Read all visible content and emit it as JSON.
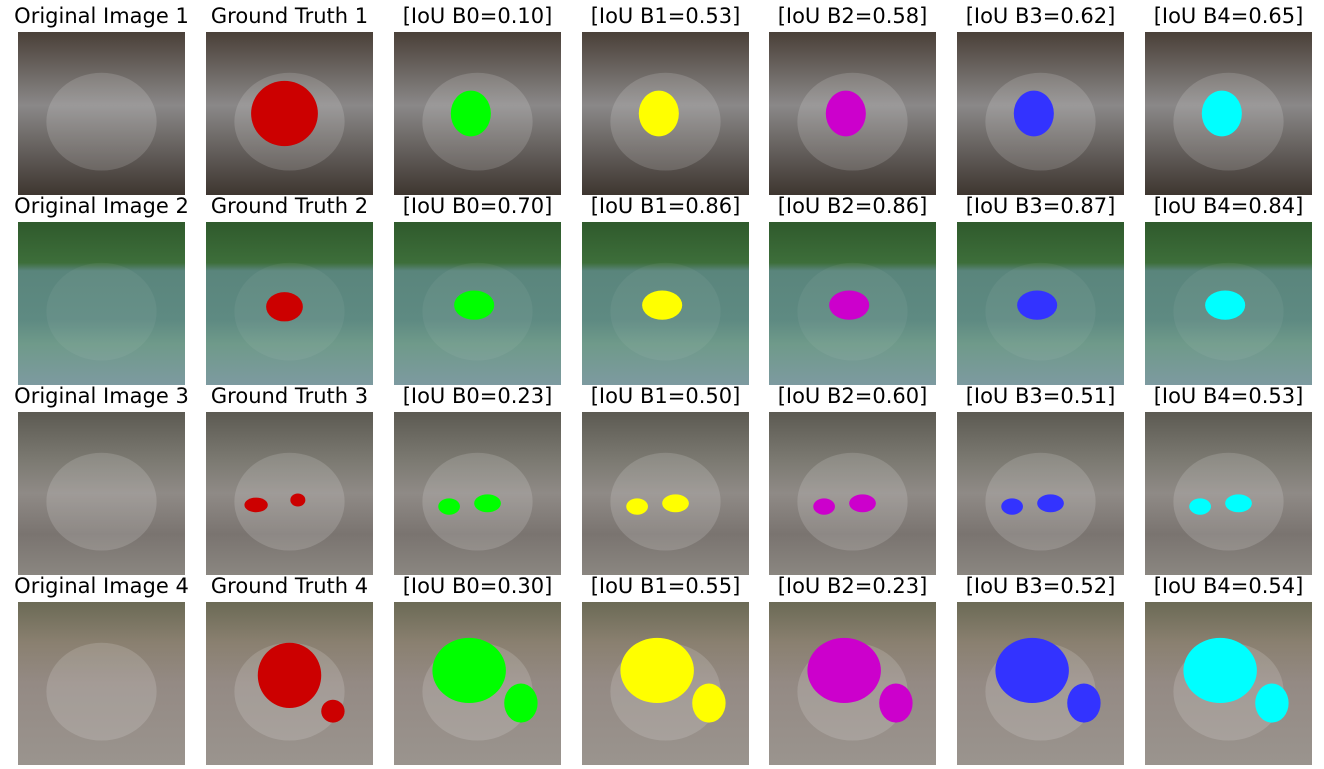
{
  "rows": [
    {
      "titles": [
        "Original Image 1",
        "Ground Truth 1",
        "[IoU B0=0.10]",
        "[IoU B1=0.53]",
        "[IoU B2=0.58]",
        "[IoU B3=0.62]",
        "[IoU B4=0.65]"
      ]
    },
    {
      "titles": [
        "Original Image 2",
        "Ground Truth 2",
        "[IoU B0=0.70]",
        "[IoU B1=0.86]",
        "[IoU B2=0.86]",
        "[IoU B3=0.87]",
        "[IoU B4=0.84]"
      ]
    },
    {
      "titles": [
        "Original Image 3",
        "Ground Truth 3",
        "[IoU B0=0.23]",
        "[IoU B1=0.50]",
        "[IoU B2=0.60]",
        "[IoU B3=0.51]",
        "[IoU B4=0.53]"
      ]
    },
    {
      "titles": [
        "Original Image 4",
        "Ground Truth 4",
        "[IoU B0=0.30]",
        "[IoU B1=0.55]",
        "[IoU B2=0.23]",
        "[IoU B3=0.52]",
        "[IoU B4=0.54]"
      ]
    }
  ]
}
